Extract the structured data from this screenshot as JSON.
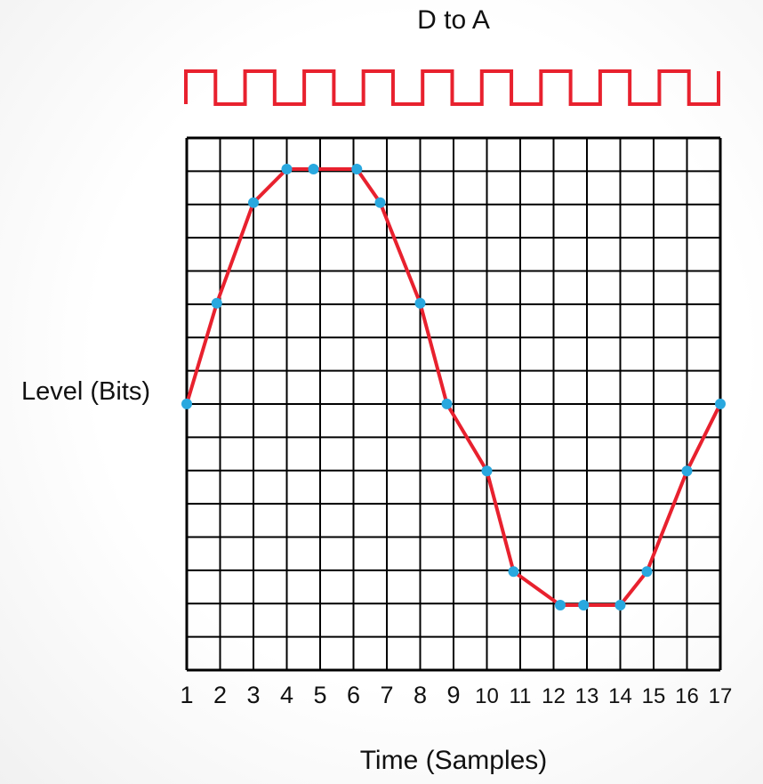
{
  "title": "D to A",
  "y_axis_label": "Level (Bits)",
  "x_axis_label": "Time (Samples)",
  "colors": {
    "signal": "#e8212e",
    "sample_point": "#29a8df",
    "grid": "#000000"
  },
  "clock_cycles": 9,
  "chart_data": {
    "type": "line",
    "title": "D to A",
    "xlabel": "Time (Samples)",
    "ylabel": "Level (Bits)",
    "grid": true,
    "x_ticks": [
      "1",
      "2",
      "3",
      "4",
      "5",
      "6",
      "7",
      "8",
      "9",
      "10",
      "11",
      "12",
      "13",
      "14",
      "15",
      "16",
      "17"
    ],
    "xlim": [
      1,
      17
    ],
    "ylim": [
      0,
      16
    ],
    "series": [
      {
        "points": [
          [
            1,
            8
          ],
          [
            1.9,
            11
          ],
          [
            3,
            14
          ],
          [
            4,
            15
          ],
          [
            4.8,
            15
          ],
          [
            6.1,
            15
          ],
          [
            6.8,
            14
          ],
          [
            8,
            11
          ],
          [
            8.8,
            8
          ],
          [
            10,
            6
          ],
          [
            10.8,
            3
          ],
          [
            12.2,
            2
          ],
          [
            12.9,
            2
          ],
          [
            14,
            2
          ],
          [
            14.8,
            3
          ],
          [
            16,
            6
          ],
          [
            17,
            8
          ]
        ]
      }
    ]
  }
}
